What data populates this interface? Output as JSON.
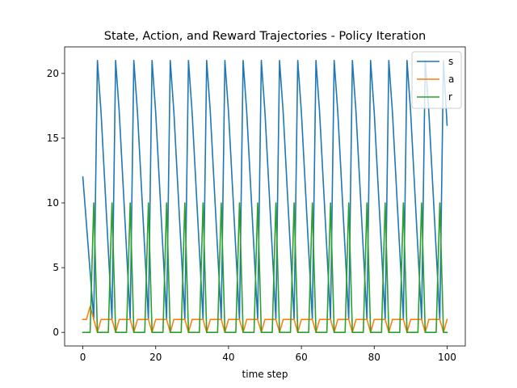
{
  "chart_data": {
    "type": "line",
    "title": "State, Action, and Reward Trajectories - Policy Iteration",
    "xlabel": "time step",
    "ylabel": "",
    "xlim": [
      -5,
      105
    ],
    "ylim": [
      -1.05,
      22.05
    ],
    "xticks": [
      0,
      20,
      40,
      60,
      80,
      100
    ],
    "yticks": [
      0,
      5,
      10,
      15,
      20
    ],
    "grid": false,
    "legend_position": "top-right",
    "series": [
      {
        "name": "s",
        "color": "#1f77b4",
        "x": [
          0,
          3,
          4,
          5,
          8,
          9,
          10,
          13,
          14,
          15,
          18,
          19,
          20,
          23,
          24,
          25,
          28,
          29,
          30,
          33,
          34,
          35,
          38,
          39,
          40,
          43,
          44,
          45,
          48,
          49,
          50,
          53,
          54,
          55,
          58,
          59,
          60,
          63,
          64,
          65,
          68,
          69,
          70,
          73,
          74,
          75,
          78,
          79,
          80,
          83,
          84,
          85,
          88,
          89,
          90,
          93,
          94,
          95,
          98,
          99,
          100
        ],
        "y": [
          12,
          1,
          21,
          17,
          1,
          21,
          17,
          1,
          21,
          17,
          1,
          21,
          17,
          1,
          21,
          17,
          1,
          21,
          17,
          1,
          21,
          17,
          1,
          21,
          17,
          1,
          21,
          17,
          1,
          21,
          17,
          1,
          21,
          17,
          1,
          21,
          17,
          1,
          21,
          17,
          1,
          21,
          17,
          1,
          21,
          17,
          1,
          21,
          17,
          1,
          21,
          17,
          1,
          21,
          17,
          1,
          21,
          17,
          1,
          21,
          16
        ]
      },
      {
        "name": "a",
        "color": "#ff7f0e",
        "x": [
          0,
          1,
          2,
          3,
          4,
          5,
          8,
          9,
          10,
          13,
          14,
          15,
          18,
          19,
          20,
          23,
          24,
          25,
          28,
          29,
          30,
          33,
          34,
          35,
          38,
          39,
          40,
          43,
          44,
          45,
          48,
          49,
          50,
          53,
          54,
          55,
          58,
          59,
          60,
          63,
          64,
          65,
          68,
          69,
          70,
          73,
          74,
          75,
          78,
          79,
          80,
          83,
          84,
          85,
          88,
          89,
          90,
          93,
          94,
          95,
          98,
          99,
          100
        ],
        "y": [
          1,
          1,
          2,
          1,
          0,
          1,
          1,
          0,
          1,
          1,
          0,
          1,
          1,
          0,
          1,
          1,
          0,
          1,
          1,
          0,
          1,
          1,
          0,
          1,
          1,
          0,
          1,
          1,
          0,
          1,
          1,
          0,
          1,
          1,
          0,
          1,
          1,
          0,
          1,
          1,
          0,
          1,
          1,
          0,
          1,
          1,
          0,
          1,
          1,
          0,
          1,
          1,
          0,
          1,
          1,
          0,
          1,
          1,
          0,
          1,
          1,
          0,
          1
        ]
      },
      {
        "name": "r",
        "color": "#2ca02c",
        "x": [
          0,
          2,
          3,
          4,
          7,
          8,
          9,
          12,
          13,
          14,
          17,
          18,
          19,
          22,
          23,
          24,
          27,
          28,
          29,
          32,
          33,
          34,
          37,
          38,
          39,
          42,
          43,
          44,
          47,
          48,
          49,
          52,
          53,
          54,
          57,
          58,
          59,
          62,
          63,
          64,
          67,
          68,
          69,
          72,
          73,
          74,
          77,
          78,
          79,
          82,
          83,
          84,
          87,
          88,
          89,
          92,
          93,
          94,
          97,
          98,
          99,
          100
        ],
        "y": [
          0,
          0,
          10,
          0,
          0,
          10,
          0,
          0,
          10,
          0,
          0,
          10,
          0,
          0,
          10,
          0,
          0,
          10,
          0,
          0,
          10,
          0,
          0,
          10,
          0,
          0,
          10,
          0,
          0,
          10,
          0,
          0,
          10,
          0,
          0,
          10,
          0,
          0,
          10,
          0,
          0,
          10,
          0,
          0,
          10,
          0,
          0,
          10,
          0,
          0,
          10,
          0,
          0,
          10,
          0,
          0,
          10,
          0,
          0,
          10,
          0,
          0
        ]
      }
    ]
  }
}
